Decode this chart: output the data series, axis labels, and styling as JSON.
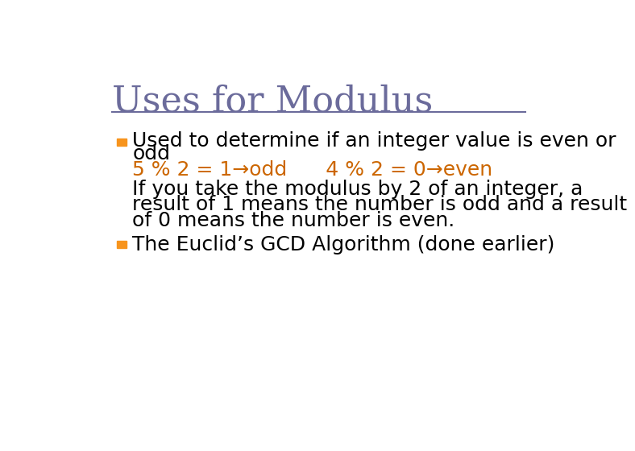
{
  "title": "Uses for Modulus",
  "title_color": "#6b6b9b",
  "title_fontsize": 32,
  "background_color": "#ffffff",
  "left_bar_colors": [
    "#ffd700",
    "#f7941d",
    "#6b6b9b"
  ],
  "separator_color": "#6b6b9b",
  "bullet_color": "#f7941d",
  "body_color": "#000000",
  "code_color": "#cc6600",
  "bullet1_line1": "Used to determine if an integer value is even or",
  "bullet1_line2": "odd",
  "bullet1_code": "5 % 2 = 1→odd      4 % 2 = 0→even",
  "bullet1_extra1": "If you take the modulus by 2 of an integer, a",
  "bullet1_extra2": "result of 1 means the number is odd and a result",
  "bullet1_extra3": "of 0 means the number is even.",
  "bullet2": "The Euclid’s GCD Algorithm (done earlier)",
  "body_fontsize": 18,
  "code_fontsize": 18
}
